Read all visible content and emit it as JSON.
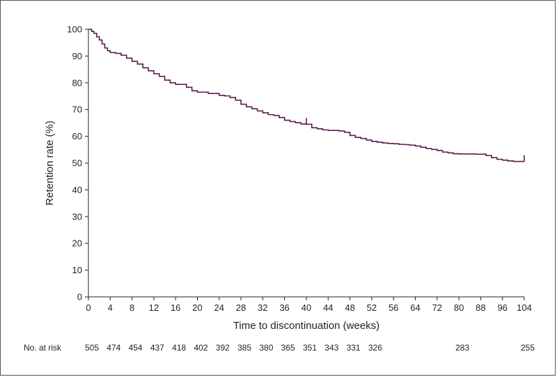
{
  "chart_data": {
    "type": "line",
    "title": "",
    "xlabel": "Time to discontinuation (weeks)",
    "ylabel": "Retention rate (%)",
    "xlim": [
      0,
      104
    ],
    "ylim": [
      0,
      100
    ],
    "x_ticks": [
      0,
      4,
      8,
      12,
      16,
      20,
      24,
      28,
      32,
      36,
      40,
      44,
      48,
      52,
      56,
      64,
      72,
      80,
      88,
      96,
      104
    ],
    "y_ticks": [
      0,
      10,
      20,
      30,
      40,
      50,
      60,
      70,
      80,
      90,
      100
    ],
    "grid": false,
    "line_color": "#5a1a4e",
    "series": [
      {
        "x": [
          0,
          0.6,
          1,
          1.5,
          2,
          2.5,
          3,
          3.5,
          4,
          5,
          6,
          7,
          8,
          9,
          10,
          11,
          12,
          13,
          14,
          15,
          16,
          18,
          19,
          20,
          22,
          24,
          25,
          26,
          27,
          28,
          29,
          30,
          31,
          32,
          33,
          34,
          35,
          36,
          37,
          38,
          39,
          40,
          41,
          42,
          43,
          44,
          46,
          47,
          48,
          49,
          50,
          51,
          52,
          53,
          54,
          55,
          56,
          58,
          60,
          62,
          64,
          66,
          68,
          70,
          72,
          74,
          76,
          78,
          80,
          82,
          84,
          86,
          88,
          90,
          92,
          94,
          96,
          98,
          100,
          102,
          104
        ],
        "y": [
          100,
          99.2,
          98.5,
          97.2,
          96,
          94.5,
          93,
          92,
          91.3,
          91,
          90.3,
          89.2,
          88,
          87,
          85.6,
          84.5,
          83.4,
          82.4,
          81,
          80,
          79.4,
          78.3,
          77,
          76.5,
          76,
          75.3,
          75.1,
          74.5,
          73.5,
          72,
          71,
          70.3,
          69.5,
          68.8,
          68.1,
          67.8,
          67,
          66,
          65.5,
          65.1,
          64.6,
          64.5,
          63.2,
          62.8,
          62.4,
          62.2,
          62,
          61.5,
          60.3,
          59.6,
          59.2,
          58.6,
          58.1,
          57.8,
          57.5,
          57.3,
          57.2,
          57,
          56.9,
          56.7,
          56.4,
          55.9,
          55.4,
          55.1,
          54.7,
          54.1,
          53.8,
          53.5,
          53.4,
          53.4,
          53.4,
          53.3,
          53.3,
          52.8,
          52,
          51.4,
          51.1,
          50.8,
          50.6,
          50.6,
          50.6
        ]
      }
    ],
    "censor_marks": [
      {
        "x": 40,
        "y": 64.5
      },
      {
        "x": 104,
        "y": 50.6
      }
    ],
    "at_risk": {
      "label": "No. at risk",
      "x": [
        0,
        4,
        8,
        12,
        16,
        20,
        24,
        28,
        32,
        36,
        40,
        44,
        48,
        52,
        80,
        104
      ],
      "values": [
        "505",
        "474",
        "454",
        "437",
        "418",
        "402",
        "392",
        "385",
        "380",
        "365",
        "351",
        "343",
        "331",
        "326",
        "283",
        "255"
      ]
    }
  }
}
